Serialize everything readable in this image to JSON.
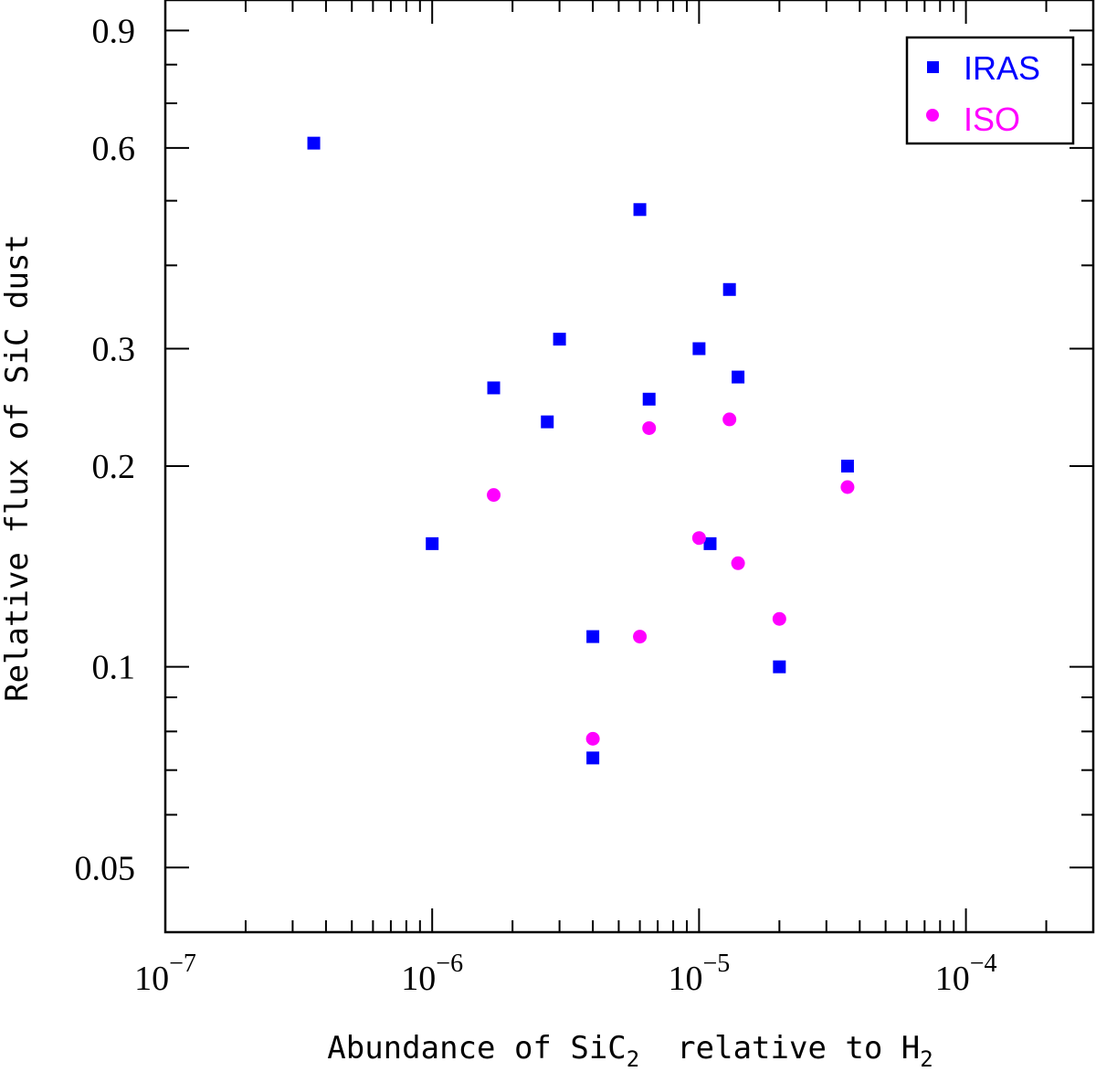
{
  "chart_data": {
    "type": "scatter",
    "title": "",
    "xlabel": {
      "pre": "Abundance of SiC",
      "sub": "2",
      "mid": "  relative to H",
      "sub2": "2"
    },
    "ylabel": "Relative flux of SiC dust",
    "xscale": "log",
    "yscale": "log",
    "xlim": [
      1e-07,
      0.0003
    ],
    "ylim": [
      0.04,
      1.0
    ],
    "x_ticks": [
      {
        "value": 1e-07,
        "base": "10",
        "exp": "−7"
      },
      {
        "value": 1e-06,
        "base": "10",
        "exp": "−6"
      },
      {
        "value": 1e-05,
        "base": "10",
        "exp": "−5"
      },
      {
        "value": 0.0001,
        "base": "10",
        "exp": "−4"
      }
    ],
    "y_ticks": [
      {
        "value": 0.05,
        "label": "0.05"
      },
      {
        "value": 0.1,
        "label": "0.1"
      },
      {
        "value": 0.2,
        "label": "0.2"
      },
      {
        "value": 0.3,
        "label": "0.3"
      },
      {
        "value": 0.6,
        "label": "0.6"
      },
      {
        "value": 0.9,
        "label": "0.9"
      }
    ],
    "legend_position": "top-right",
    "series": [
      {
        "name": "IRAS",
        "marker": "square",
        "color": "#0000ff",
        "points": [
          {
            "x": 3.6e-07,
            "y": 0.61
          },
          {
            "x": 1e-06,
            "y": 0.153
          },
          {
            "x": 1.7e-06,
            "y": 0.262
          },
          {
            "x": 2.7e-06,
            "y": 0.233
          },
          {
            "x": 3e-06,
            "y": 0.31
          },
          {
            "x": 4e-06,
            "y": 0.111
          },
          {
            "x": 4e-06,
            "y": 0.073
          },
          {
            "x": 6e-06,
            "y": 0.485
          },
          {
            "x": 6.5e-06,
            "y": 0.252
          },
          {
            "x": 1e-05,
            "y": 0.3
          },
          {
            "x": 1.1e-05,
            "y": 0.153
          },
          {
            "x": 1.3e-05,
            "y": 0.368
          },
          {
            "x": 1.4e-05,
            "y": 0.272
          },
          {
            "x": 2e-05,
            "y": 0.1
          },
          {
            "x": 3.6e-05,
            "y": 0.2
          }
        ]
      },
      {
        "name": "ISO",
        "marker": "circle",
        "color": "#ff00ff",
        "points": [
          {
            "x": 1.7e-06,
            "y": 0.181
          },
          {
            "x": 4e-06,
            "y": 0.078
          },
          {
            "x": 6e-06,
            "y": 0.111
          },
          {
            "x": 6.5e-06,
            "y": 0.228
          },
          {
            "x": 1e-05,
            "y": 0.156
          },
          {
            "x": 1.3e-05,
            "y": 0.235
          },
          {
            "x": 1.4e-05,
            "y": 0.143
          },
          {
            "x": 2e-05,
            "y": 0.118
          },
          {
            "x": 3.6e-05,
            "y": 0.186
          }
        ]
      }
    ]
  }
}
